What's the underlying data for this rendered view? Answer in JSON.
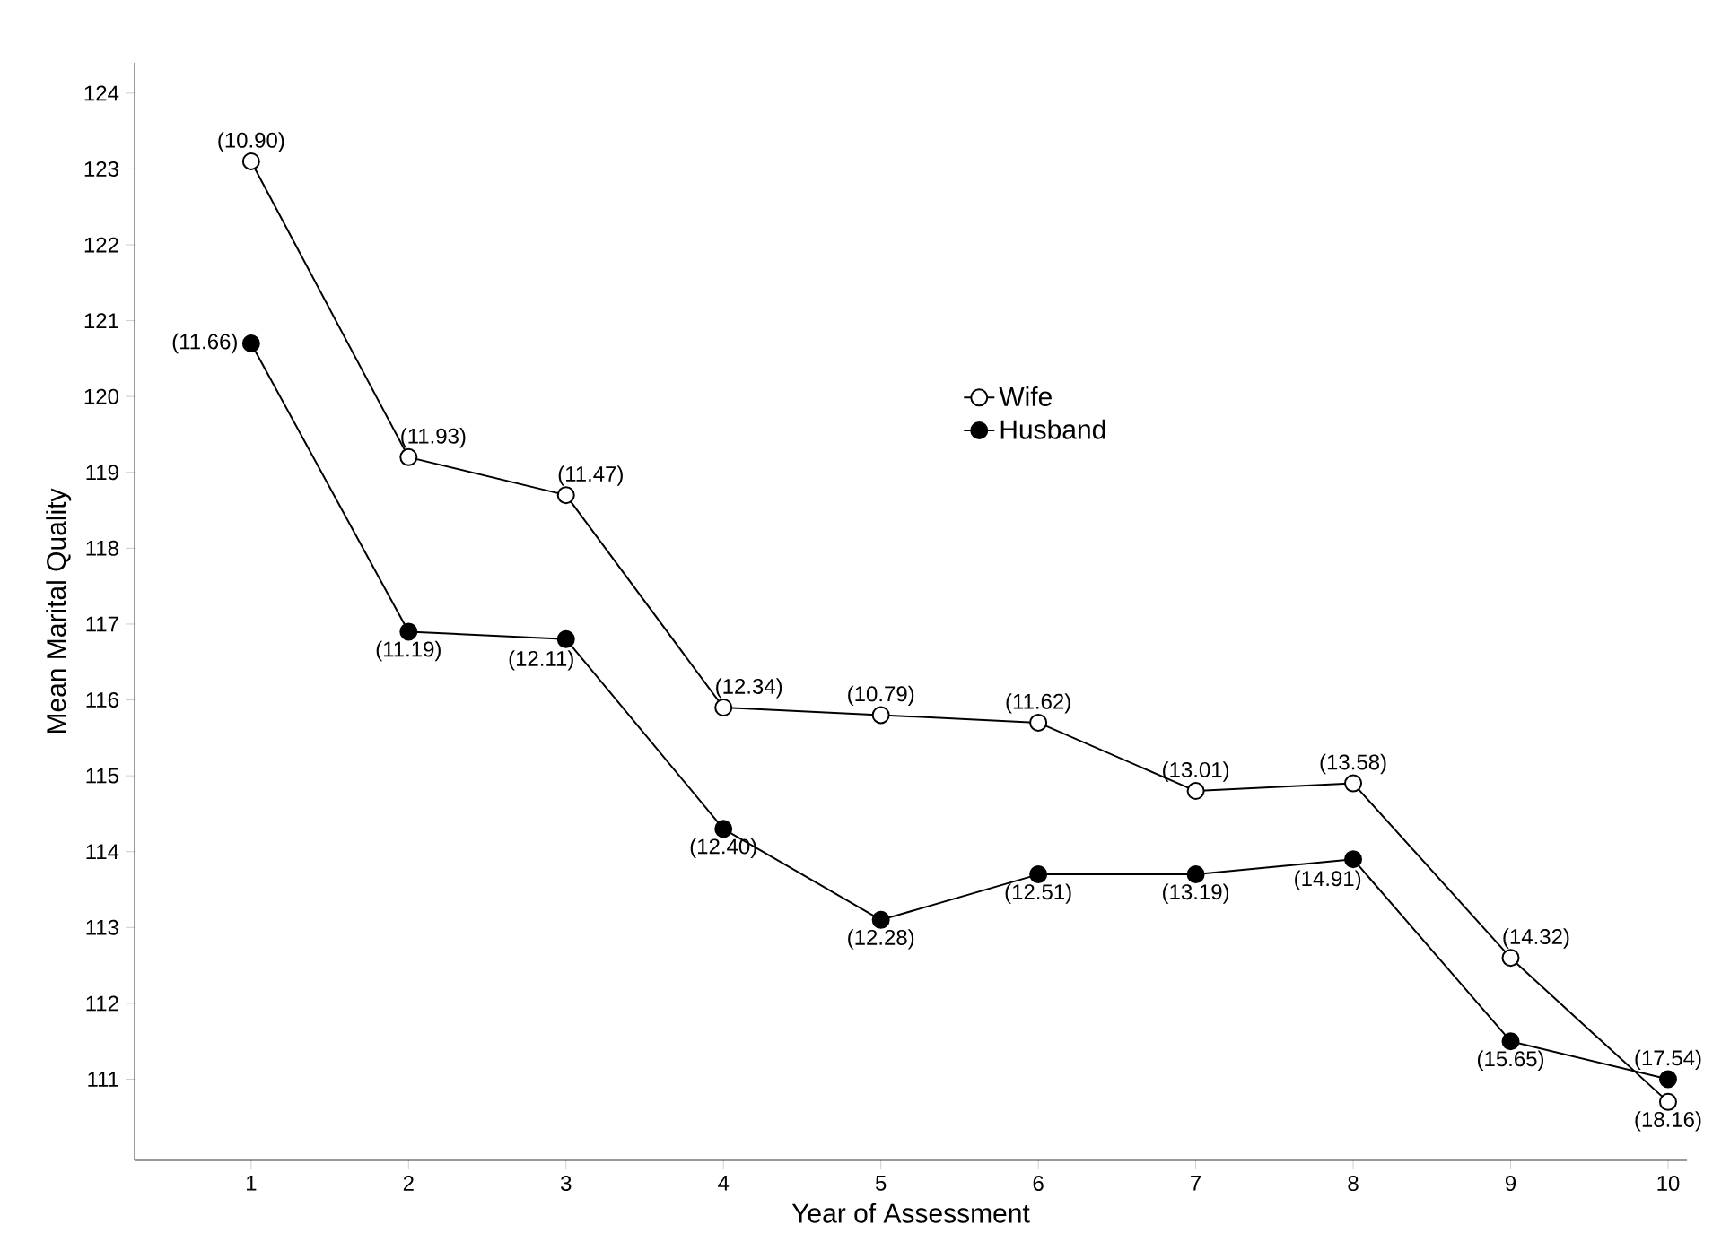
{
  "chart_data": {
    "type": "line",
    "xlabel": "Year of Assessment",
    "ylabel": "Mean Marital Quality",
    "x": [
      1,
      2,
      3,
      4,
      5,
      6,
      7,
      8,
      9,
      10
    ],
    "xlim": [
      0.26,
      10.12
    ],
    "ylim": [
      109.93,
      124.4
    ],
    "xticks": [
      1,
      2,
      3,
      4,
      5,
      6,
      7,
      8,
      9,
      10
    ],
    "yticks": [
      111,
      112,
      113,
      114,
      115,
      116,
      117,
      118,
      119,
      120,
      121,
      122,
      123,
      124
    ],
    "marker": "circle",
    "legend": "top",
    "grid": false,
    "series": [
      {
        "name": "Wife",
        "color": "#ffffff",
        "values": [
          123.1,
          119.2,
          118.7,
          115.9,
          115.8,
          115.7,
          114.8,
          114.9,
          112.6,
          110.7
        ]
      },
      {
        "name": "Husband",
        "color": "#000000",
        "values": [
          120.7,
          116.9,
          116.8,
          114.3,
          113.1,
          113.7,
          113.7,
          113.9,
          111.5,
          111.0
        ]
      }
    ],
    "annotations": [
      {
        "text": "(10.90)",
        "x": 1,
        "y": 123.1
      },
      {
        "text": "(11.93)",
        "x": 2,
        "y": 119.2
      },
      {
        "text": "(11.47)",
        "x": 3,
        "y": 118.7
      },
      {
        "text": "(12.34)",
        "x": 4,
        "y": 115.9
      },
      {
        "text": "(10.79)",
        "x": 5,
        "y": 115.8
      },
      {
        "text": "(11.62)",
        "x": 6,
        "y": 115.7
      },
      {
        "text": "(13.01)",
        "x": 7,
        "y": 114.8
      },
      {
        "text": "(13.58)",
        "x": 8,
        "y": 114.9
      },
      {
        "text": "(14.32)",
        "x": 9,
        "y": 112.6
      },
      {
        "text": "(18.16)",
        "x": 10,
        "y": 110.7
      },
      {
        "text": "(11.66)",
        "x": 1,
        "y": 120.7
      },
      {
        "text": "(11.19)",
        "x": 2,
        "y": 116.9
      },
      {
        "text": "(12.11)",
        "x": 3,
        "y": 116.8
      },
      {
        "text": "(12.40)",
        "x": 4,
        "y": 114.3
      },
      {
        "text": "(12.28)",
        "x": 5,
        "y": 113.1
      },
      {
        "text": "(12.51)",
        "x": 6,
        "y": 113.7
      },
      {
        "text": "(13.19)",
        "x": 7,
        "y": 113.7
      },
      {
        "text": "(14.91)",
        "x": 8,
        "y": 113.9
      },
      {
        "text": "(15.65)",
        "x": 9,
        "y": 111.5
      },
      {
        "text": "(17.54)",
        "x": 10,
        "y": 111.0
      }
    ]
  }
}
